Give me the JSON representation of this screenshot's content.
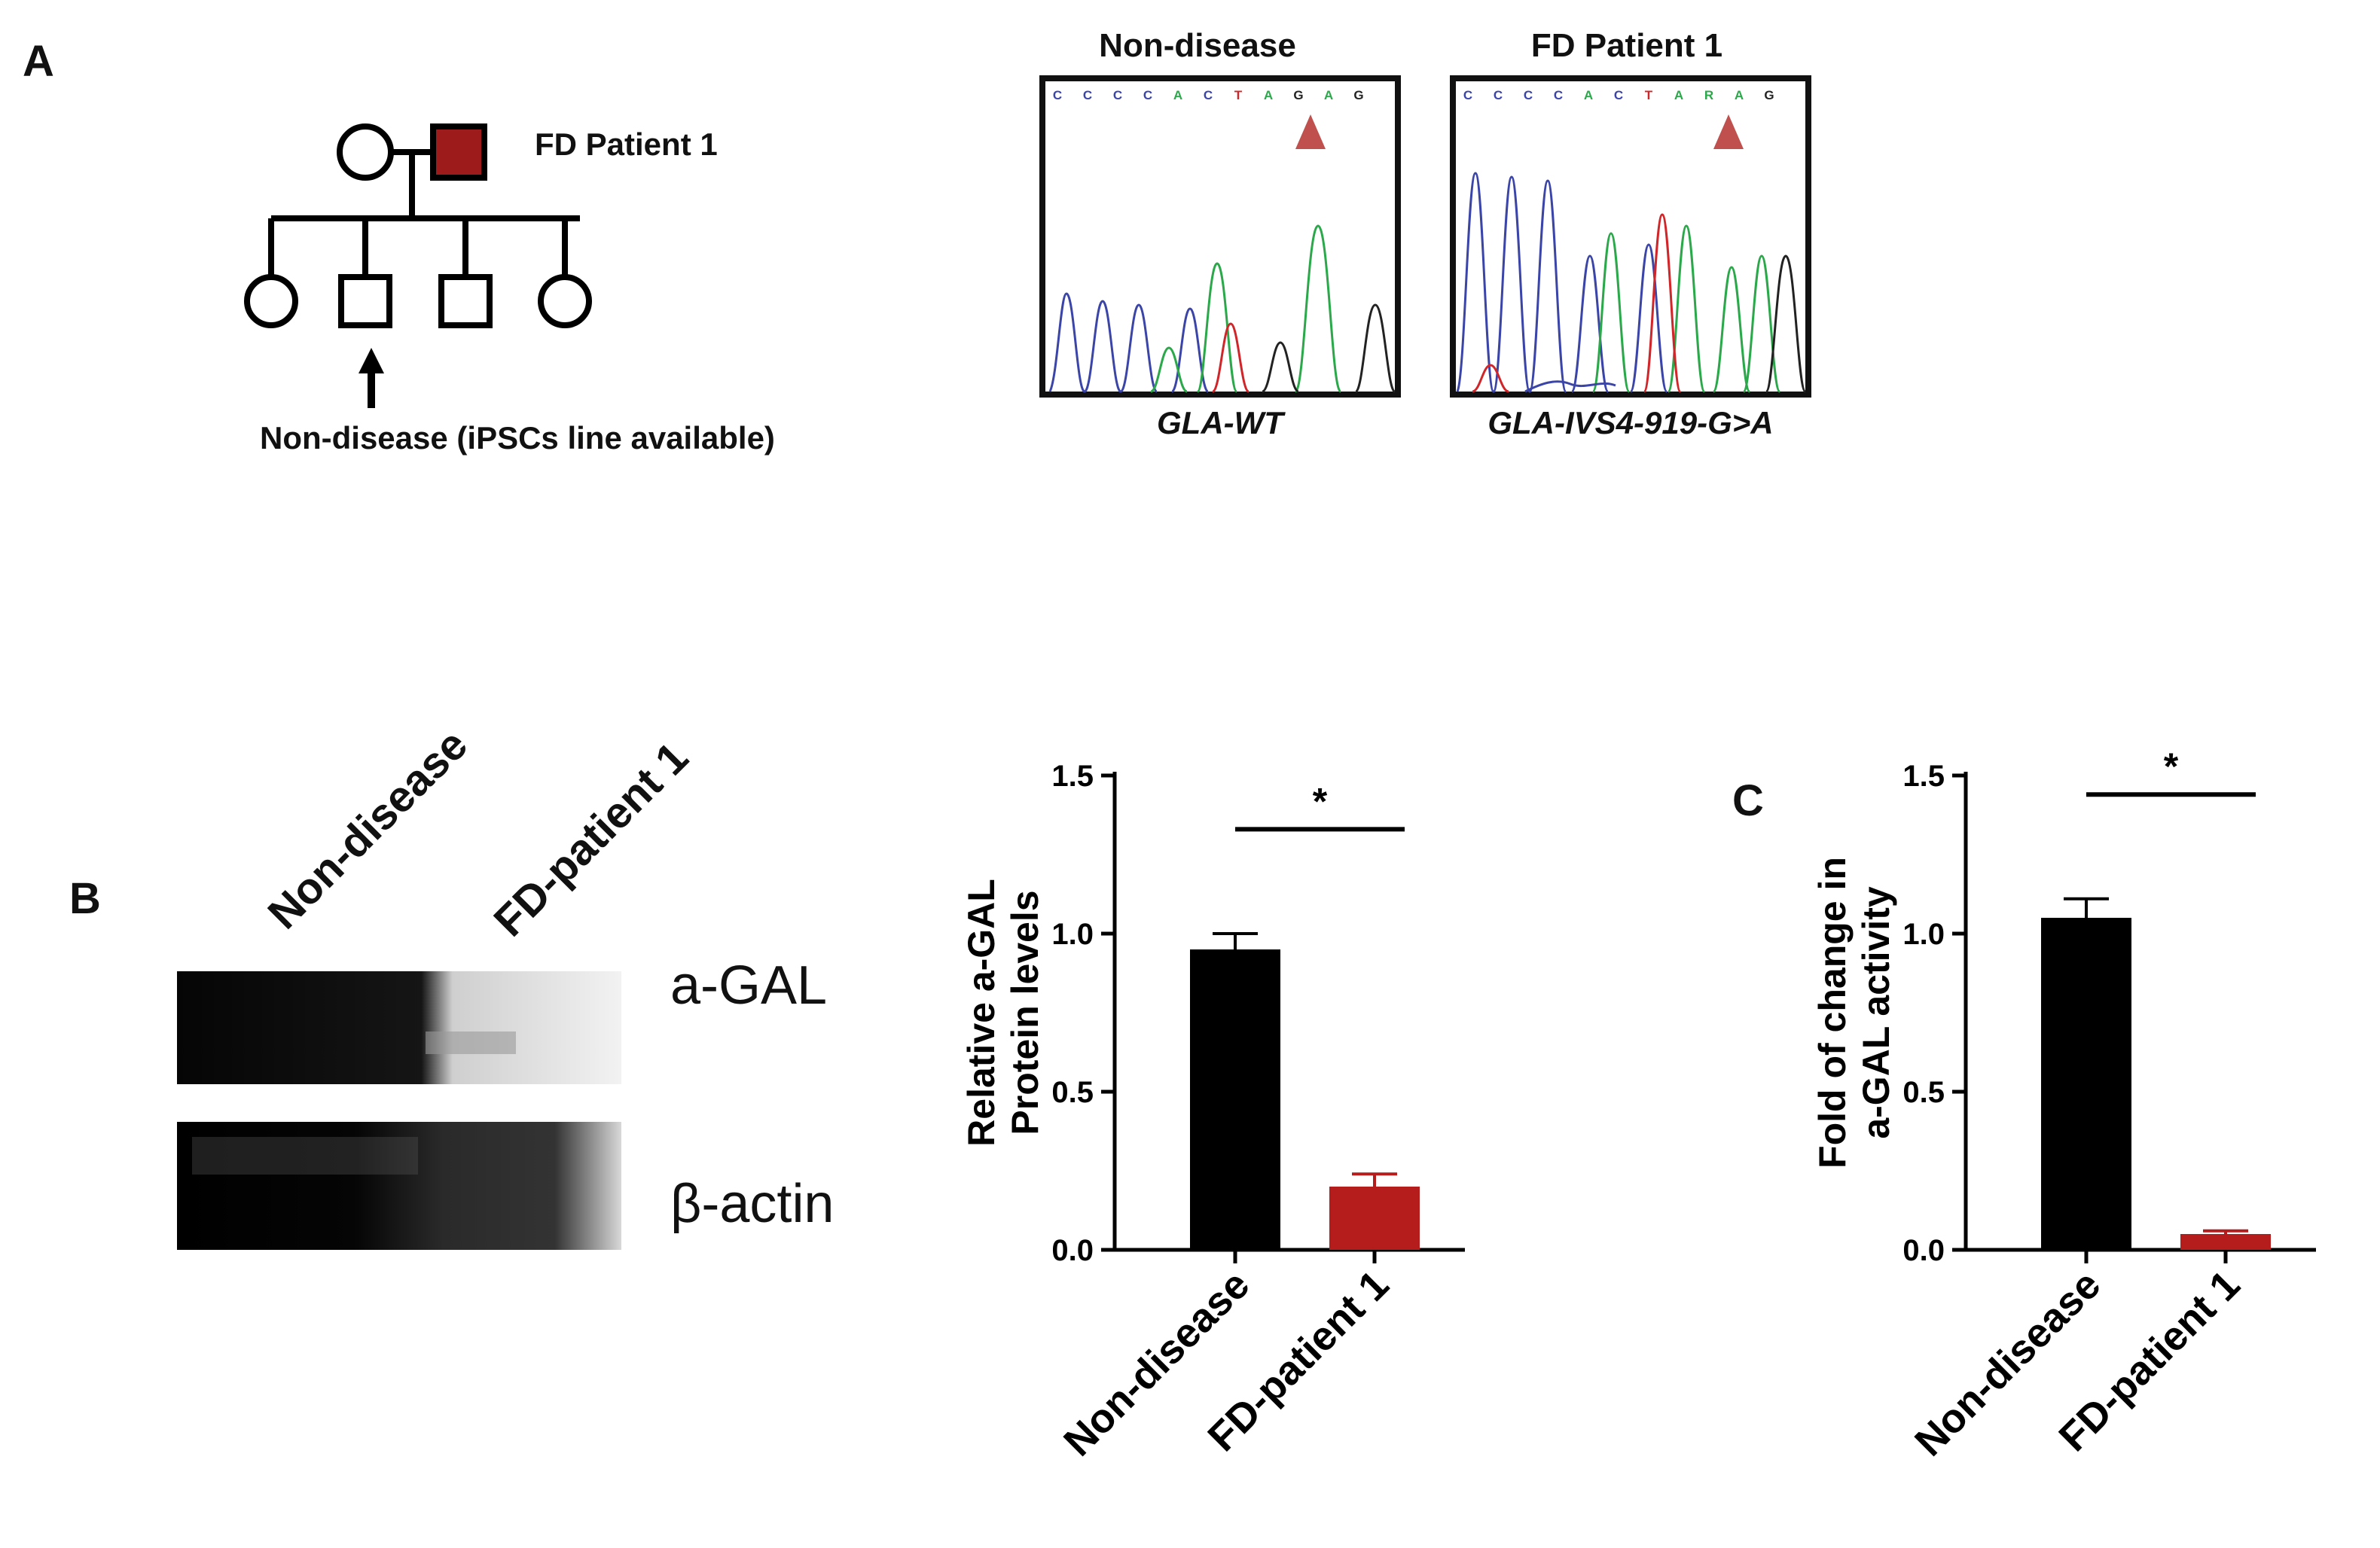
{
  "panels": {
    "a": "A",
    "b": "B",
    "c": "C"
  },
  "pedigree": {
    "proband_label": "FD Patient 1",
    "arrow_label": "Non-disease (iPSCs line available)"
  },
  "sequencing": [
    {
      "title": "Non-disease",
      "genotype": "GLA-WT",
      "bases": [
        "C",
        "C",
        "C",
        "C",
        "A",
        "C",
        "T",
        "A",
        "G",
        "A",
        "G"
      ]
    },
    {
      "title": "FD Patient 1",
      "genotype": "GLA-IVS4-919-G>A",
      "bases": [
        "C",
        "C",
        "C",
        "C",
        "A",
        "C",
        "T",
        "A",
        "R",
        "A",
        "G"
      ]
    }
  ],
  "blot": {
    "lanes": [
      "Non-disease",
      "FD-patient 1"
    ],
    "bands": [
      "a-GAL",
      "β-actin"
    ]
  },
  "colors": {
    "control": "#000000",
    "patient": "#b51c1c",
    "arrow": "#c0504d",
    "base_C": "#3b45a8",
    "base_A": "#2aa84a",
    "base_T": "#d0262a",
    "base_G": "#222222"
  },
  "chart_data": [
    {
      "type": "bar",
      "categories": [
        "Non-disease",
        "FD-patient 1"
      ],
      "values": [
        0.95,
        0.2
      ],
      "errors": [
        0.05,
        0.04
      ],
      "ylabel_lines": [
        "Relative a-GAL",
        "Protein levels"
      ],
      "ylim": [
        0,
        1.5
      ],
      "yticks": [
        "0.0",
        "0.5",
        "1.0",
        "1.5"
      ],
      "significance": "*"
    },
    {
      "type": "bar",
      "categories": [
        "Non-disease",
        "FD-patient 1"
      ],
      "values": [
        1.05,
        0.05
      ],
      "errors": [
        0.06,
        0.01
      ],
      "ylabel_lines": [
        "Fold of change in",
        "a-GAL activity"
      ],
      "ylim": [
        0,
        1.5
      ],
      "yticks": [
        "0.0",
        "0.5",
        "1.0",
        "1.5"
      ],
      "significance": "*"
    }
  ]
}
